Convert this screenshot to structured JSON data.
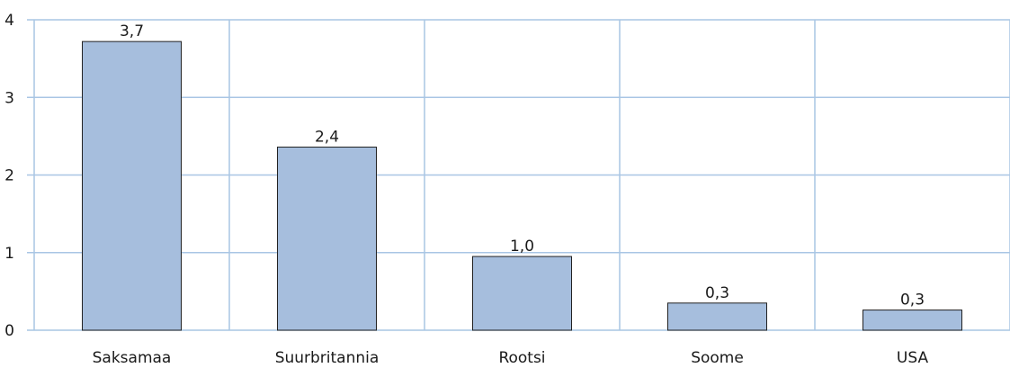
{
  "chart_data": {
    "type": "bar",
    "categories": [
      "Saksamaa",
      "Suurbritannia",
      "Rootsi",
      "Soome",
      "USA"
    ],
    "values": [
      3.72,
      2.36,
      0.95,
      0.35,
      0.26
    ],
    "data_labels": [
      "3,7",
      "2,4",
      "1,0",
      "0,3",
      "0,3"
    ],
    "ylim": [
      0,
      4
    ],
    "yticks": [
      0,
      1,
      2,
      3,
      4
    ],
    "ytick_labels": [
      "0",
      "1",
      "2",
      "3",
      "4"
    ],
    "title": "",
    "xlabel": "",
    "ylabel": "",
    "grid": true,
    "colors": {
      "bar_fill": "#a6bedd",
      "bar_stroke": "#222222",
      "grid": "#a9c6e4",
      "axis": "#a9c6e4"
    }
  }
}
